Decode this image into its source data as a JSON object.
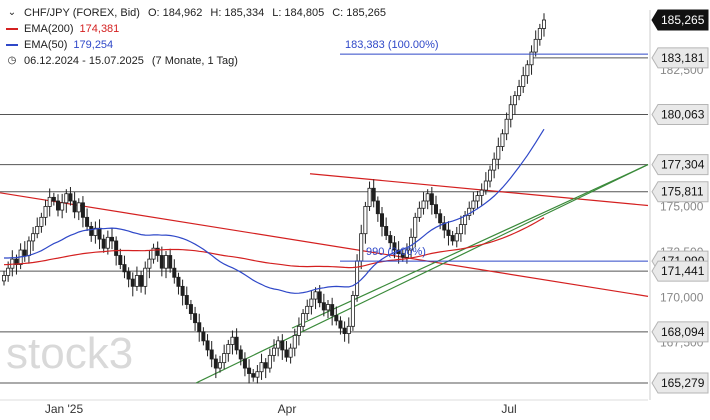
{
  "header": {
    "symbol": "CHF/JPY (FOREX, Bid)",
    "ohlc": {
      "o": "O: 184,962",
      "h": "H: 185,334",
      "l": "L: 184,805",
      "c": "C: 185,265"
    },
    "ema200_label": "EMA(200)",
    "ema200_value": "174,381",
    "ema50_label": "EMA(50)",
    "ema50_value": "179,254",
    "range": "06.12.2024 - 15.07.2025",
    "period": "(7 Monate, 1 Tag)"
  },
  "colors": {
    "candle": "#1f1f1f",
    "ema200": "#d42020",
    "ema50": "#2f48c8",
    "trend_red": "#d42020",
    "trend_green": "#3a8a3a",
    "level": "#555555",
    "fib": "#2f48c8",
    "label_bg": "#e9e9e9"
  },
  "watermark": "stock3",
  "chart_data": {
    "type": "candlestick",
    "x_ticks": [
      "Jan '25",
      "Apr",
      "Jul"
    ],
    "y_ticks": [
      {
        "value": 182.5,
        "label": "182,500"
      },
      {
        "value": 175.0,
        "label": "175,000"
      },
      {
        "value": 172.5,
        "label": "172,500"
      },
      {
        "value": 170.0,
        "label": "170,000"
      },
      {
        "value": 167.5,
        "label": "167,500"
      }
    ],
    "price_labels": [
      {
        "value": 185.265,
        "label": "185,265",
        "style": "current"
      },
      {
        "value": 183.181,
        "label": "183,181",
        "style": "level"
      },
      {
        "value": 180.063,
        "label": "180,063",
        "style": "level"
      },
      {
        "value": 177.304,
        "label": "177,304",
        "style": "level"
      },
      {
        "value": 175.811,
        "label": "175,811",
        "style": "level"
      },
      {
        "value": 171.99,
        "label": "171,990",
        "style": "level"
      },
      {
        "value": 171.441,
        "label": "171,441",
        "style": "level"
      },
      {
        "value": 168.094,
        "label": "168,094",
        "style": "level"
      },
      {
        "value": 165.279,
        "label": "165,279",
        "style": "level"
      }
    ],
    "fib_levels": [
      {
        "value": 183.383,
        "label": "183,383 (100.00%)"
      },
      {
        "value": 171.99,
        "label": "990 (0.00%)"
      }
    ],
    "horizontal_lines": [
      183.181,
      180.063,
      177.304,
      175.811,
      171.441,
      168.094,
      165.279
    ],
    "closes": [
      171.2,
      171.6,
      172.1,
      171.8,
      172.6,
      172.3,
      173.1,
      173.5,
      173.9,
      174.4,
      175.0,
      175.5,
      175.3,
      174.8,
      175.2,
      175.7,
      175.3,
      174.7,
      175.2,
      174.4,
      173.9,
      173.4,
      173.8,
      173.2,
      172.7,
      173.3,
      173.1,
      172.3,
      171.8,
      171.4,
      171.0,
      170.6,
      171.2,
      170.6,
      171.6,
      172.1,
      172.7,
      172.3,
      171.6,
      172.3,
      171.6,
      171.1,
      170.6,
      170.1,
      169.6,
      169.1,
      168.6,
      168.1,
      167.6,
      167.1,
      166.6,
      166.1,
      166.4,
      166.9,
      167.4,
      167.8,
      167.1,
      166.6,
      166.1,
      165.8,
      165.6,
      165.9,
      166.4,
      166.1,
      166.8,
      167.2,
      167.6,
      167.1,
      166.7,
      167.2,
      167.9,
      168.4,
      169.1,
      169.5,
      169.9,
      170.3,
      169.7,
      169.3,
      169.6,
      169.0,
      168.7,
      168.3,
      168.0,
      168.4,
      170.1,
      172.0,
      173.5,
      175.0,
      176.0,
      175.3,
      174.6,
      173.9,
      173.4,
      173.0,
      172.6,
      172.4,
      172.2,
      172.6,
      173.3,
      174.4,
      174.9,
      175.3,
      175.7,
      175.1,
      174.6,
      174.1,
      173.7,
      173.4,
      173.1,
      173.5,
      174.0,
      174.5,
      174.9,
      175.3,
      175.6,
      175.9,
      176.4,
      177.0,
      177.6,
      178.3,
      179.0,
      179.8,
      180.6,
      181.1,
      181.6,
      182.2,
      182.8,
      183.5,
      184.2,
      184.8,
      185.265
    ],
    "highs_overlay": {
      "start_high": 176.8,
      "end_high": 175.9
    },
    "ema50_end": 179.254,
    "ema200_end": 174.381
  }
}
